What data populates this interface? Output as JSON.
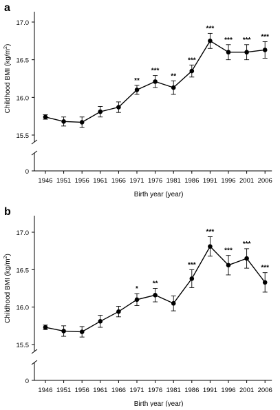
{
  "chart_data": [
    {
      "panel_label": "a",
      "type": "line",
      "xlabel": "Birth year (year)",
      "ylabel_main": "Childhood BMI (kg/m",
      "ylabel_sup": "2",
      "ylabel_tail": ")",
      "categories": [
        "1946",
        "1951",
        "1956",
        "1961",
        "1966",
        "1971",
        "1976",
        "1981",
        "1986",
        "1991",
        "1996",
        "2001",
        "2006"
      ],
      "series": [
        {
          "values": [
            15.74,
            15.68,
            15.67,
            15.81,
            15.87,
            16.1,
            16.21,
            16.13,
            16.35,
            16.75,
            16.6,
            16.6,
            16.63
          ],
          "error": [
            0.03,
            0.06,
            0.07,
            0.07,
            0.07,
            0.06,
            0.08,
            0.09,
            0.08,
            0.1,
            0.1,
            0.1,
            0.11
          ],
          "significance": [
            "",
            "",
            "",
            "",
            "",
            "**",
            "***",
            "**",
            "***",
            "***",
            "***",
            "***",
            "***"
          ]
        }
      ],
      "yticks": [
        "0",
        "15.5",
        "16.0",
        "16.5",
        "17.0"
      ],
      "ylim": [
        15.28,
        17.12
      ],
      "axis_break": true,
      "grid": false
    },
    {
      "panel_label": "b",
      "type": "line",
      "xlabel": "Birth year (year)",
      "ylabel_main": "Childhood BMI (kg/m",
      "ylabel_sup": "2",
      "ylabel_tail": ")",
      "categories": [
        "1946",
        "1951",
        "1956",
        "1961",
        "1966",
        "1971",
        "1976",
        "1981",
        "1986",
        "1991",
        "1996",
        "2001",
        "2006"
      ],
      "series": [
        {
          "values": [
            15.73,
            15.68,
            15.67,
            15.81,
            15.94,
            16.1,
            16.16,
            16.05,
            16.38,
            16.81,
            16.56,
            16.65,
            16.33
          ],
          "error": [
            0.03,
            0.07,
            0.07,
            0.08,
            0.07,
            0.08,
            0.09,
            0.1,
            0.12,
            0.13,
            0.13,
            0.13,
            0.13
          ],
          "significance": [
            "",
            "",
            "",
            "",
            "",
            "*",
            "**",
            "",
            "***",
            "***",
            "***",
            "***",
            "***"
          ]
        }
      ],
      "yticks": [
        "0",
        "15.5",
        "16.0",
        "16.5",
        "17.0"
      ],
      "ylim": [
        15.28,
        17.12
      ],
      "axis_break": true,
      "grid": false
    }
  ]
}
